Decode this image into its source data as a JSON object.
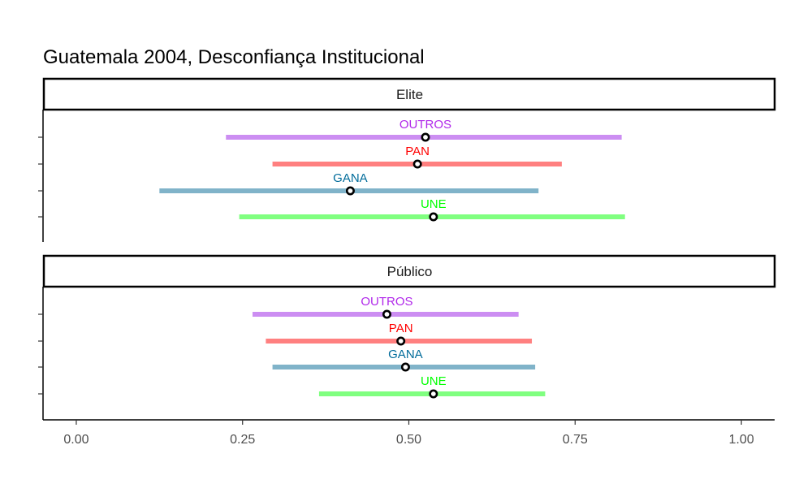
{
  "chart_data": {
    "type": "errorbar",
    "title": "Guatemala 2004, Desconfiança Institucional",
    "xlabel": "",
    "ylabel": "",
    "xlim": [
      -0.05,
      1.05
    ],
    "xticks": [
      "0.00",
      "0.25",
      "0.50",
      "0.75",
      "1.00"
    ],
    "xtick_values": [
      0,
      0.25,
      0.5,
      0.75,
      1.0
    ],
    "grid": false,
    "legend": "none",
    "panels": [
      {
        "label": "Elite",
        "series": [
          {
            "name": "OUTROS",
            "lower": 0.225,
            "estimate": 0.525,
            "upper": 0.82,
            "color": "#cc8ef2",
            "label_color": "#b027ea"
          },
          {
            "name": "PAN",
            "lower": 0.295,
            "estimate": 0.513,
            "upper": 0.73,
            "color": "#ff8080",
            "label_color": "#ff0000"
          },
          {
            "name": "GANA",
            "lower": 0.125,
            "estimate": 0.412,
            "upper": 0.695,
            "color": "#80b3c9",
            "label_color": "#006b9a"
          },
          {
            "name": "UNE",
            "lower": 0.245,
            "estimate": 0.537,
            "upper": 0.825,
            "color": "#80ff80",
            "label_color": "#00ff00"
          }
        ]
      },
      {
        "label": "Público",
        "series": [
          {
            "name": "OUTROS",
            "lower": 0.265,
            "estimate": 0.467,
            "upper": 0.665,
            "color": "#cc8ef2",
            "label_color": "#b027ea"
          },
          {
            "name": "PAN",
            "lower": 0.285,
            "estimate": 0.488,
            "upper": 0.685,
            "color": "#ff8080",
            "label_color": "#ff0000"
          },
          {
            "name": "GANA",
            "lower": 0.295,
            "estimate": 0.495,
            "upper": 0.69,
            "color": "#80b3c9",
            "label_color": "#006b9a"
          },
          {
            "name": "UNE",
            "lower": 0.365,
            "estimate": 0.537,
            "upper": 0.705,
            "color": "#80ff80",
            "label_color": "#00ff00"
          }
        ]
      }
    ]
  }
}
